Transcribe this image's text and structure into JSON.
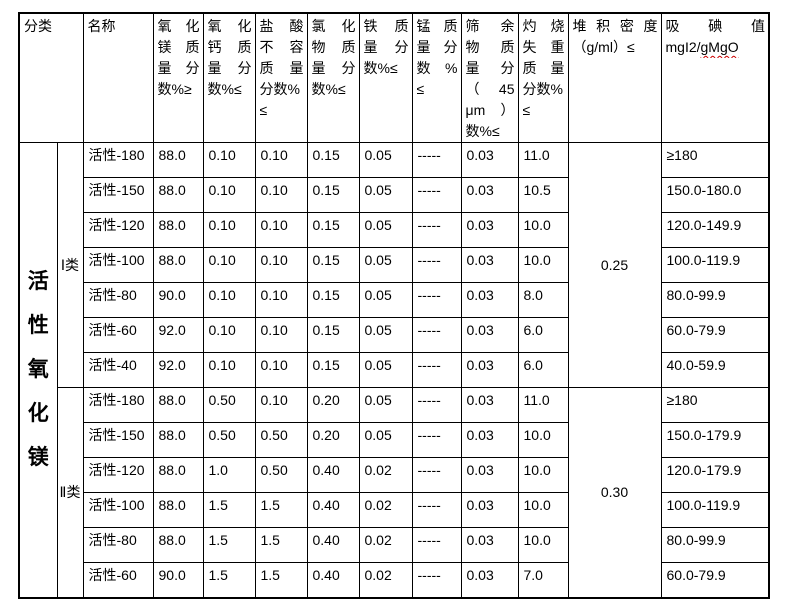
{
  "colors": {
    "background": "#ffffff",
    "text": "#000000",
    "table_border": "#000000",
    "spellcheck_underline": "#cc0000"
  },
  "table": {
    "columns": [
      {
        "id": "classification",
        "label": "分类"
      },
      {
        "id": "name",
        "label": "名称"
      },
      {
        "id": "mgo-mass-fraction",
        "label": "氧化镁质量分数%≥",
        "lines": [
          {
            "t": "氧化",
            "j": true
          },
          {
            "t": "镁质",
            "j": true
          },
          {
            "t": "量分",
            "j": true
          },
          {
            "t": "数%≥",
            "j": false
          }
        ]
      },
      {
        "id": "cao-mass-fraction",
        "label": "氧化钙质量分数%≤",
        "lines": [
          {
            "t": "氧化",
            "j": true
          },
          {
            "t": "钙质",
            "j": true
          },
          {
            "t": "量分",
            "j": true
          },
          {
            "t": "数%≤",
            "j": false
          }
        ]
      },
      {
        "id": "hcl-insoluble-mass-fraction",
        "label": "盐酸不容质量分数%≤",
        "lines": [
          {
            "t": "盐酸",
            "j": true
          },
          {
            "t": "不容",
            "j": true
          },
          {
            "t": "质量",
            "j": true
          },
          {
            "t": "分数%",
            "j": false
          },
          {
            "t": "≤",
            "j": false
          }
        ]
      },
      {
        "id": "chloride-mass-fraction",
        "label": "氯化物质量分数%≤",
        "lines": [
          {
            "t": "氯化",
            "j": true
          },
          {
            "t": "物质",
            "j": true
          },
          {
            "t": "量分",
            "j": true
          },
          {
            "t": "数%≤",
            "j": false
          }
        ]
      },
      {
        "id": "iron-mass-fraction",
        "label": "铁质量分数%≤",
        "lines": [
          {
            "t": "铁质",
            "j": true
          },
          {
            "t": "量分",
            "j": true
          },
          {
            "t": "数%≤",
            "j": false
          }
        ]
      },
      {
        "id": "manganese-mass-fraction",
        "label": "锰质量分数 %≤",
        "lines": [
          {
            "t": "锰质",
            "j": true
          },
          {
            "t": "量分",
            "j": true
          },
          {
            "t": "数 %",
            "j": true
          },
          {
            "t": "≤",
            "j": false
          }
        ]
      },
      {
        "id": "sieve-residue-mass-fraction",
        "label": "筛余物质量分（45μm）数%≤",
        "lines": [
          {
            "t": "筛余",
            "j": true
          },
          {
            "t": "物质",
            "j": true
          },
          {
            "t": "量分",
            "j": true
          },
          {
            "t": "（45",
            "j": true
          },
          {
            "t": "μm）",
            "j": true
          },
          {
            "t": "数%≤",
            "j": false
          }
        ]
      },
      {
        "id": "loss-on-ignition",
        "label": "灼烧失重质量分数%≤",
        "lines": [
          {
            "t": "灼烧",
            "j": true
          },
          {
            "t": "失重",
            "j": true
          },
          {
            "t": "质量",
            "j": true
          },
          {
            "t": "分数%",
            "j": false
          },
          {
            "t": "≤",
            "j": false
          }
        ]
      },
      {
        "id": "bulk-density",
        "label": "堆积密度（g/ml）≤",
        "lines": [
          {
            "t": "堆积密度",
            "j": true
          },
          {
            "t": "（g/ml）≤",
            "j": false
          }
        ]
      },
      {
        "id": "iodine-absorption-value",
        "label": "吸碘值 mgI2/gMgO",
        "lines": [
          {
            "t": "吸碘值",
            "j": true
          }
        ],
        "unit_plain": "mgI2/",
        "unit_flagged": "gMgO"
      }
    ],
    "body": {
      "category_label": "活性氧化镁",
      "groups": [
        {
          "label": "Ⅰ类",
          "bulk_density": "0.25",
          "rows": [
            {
              "name": "活性-180",
              "mgo": "88.0",
              "cao": "0.10",
              "hcl": "0.10",
              "chloride": "0.15",
              "iron": "0.05",
              "manganese": "-----",
              "sieve": "0.03",
              "loi": "11.0",
              "iodine": "≥180"
            },
            {
              "name": "活性-150",
              "mgo": "88.0",
              "cao": "0.10",
              "hcl": "0.10",
              "chloride": "0.15",
              "iron": "0.05",
              "manganese": "-----",
              "sieve": "0.03",
              "loi": "10.5",
              "iodine": "150.0-180.0"
            },
            {
              "name": "活性-120",
              "mgo": "88.0",
              "cao": "0.10",
              "hcl": "0.10",
              "chloride": "0.15",
              "iron": "0.05",
              "manganese": "-----",
              "sieve": "0.03",
              "loi": "10.0",
              "iodine": "120.0-149.9"
            },
            {
              "name": "活性-100",
              "mgo": "88.0",
              "cao": "0.10",
              "hcl": "0.10",
              "chloride": "0.15",
              "iron": "0.05",
              "manganese": "-----",
              "sieve": "0.03",
              "loi": "10.0",
              "iodine": "100.0-119.9"
            },
            {
              "name": "活性-80",
              "mgo": "90.0",
              "cao": "0.10",
              "hcl": "0.10",
              "chloride": "0.15",
              "iron": "0.05",
              "manganese": "-----",
              "sieve": "0.03",
              "loi": "8.0",
              "iodine": "80.0-99.9"
            },
            {
              "name": "活性-60",
              "mgo": "92.0",
              "cao": "0.10",
              "hcl": "0.10",
              "chloride": "0.15",
              "iron": "0.05",
              "manganese": "-----",
              "sieve": "0.03",
              "loi": "6.0",
              "iodine": "60.0-79.9"
            },
            {
              "name": "活性-40",
              "mgo": "92.0",
              "cao": "0.10",
              "hcl": "0.10",
              "chloride": "0.15",
              "iron": "0.05",
              "manganese": "-----",
              "sieve": "0.03",
              "loi": "6.0",
              "iodine": "40.0-59.9"
            }
          ]
        },
        {
          "label": "Ⅱ类",
          "bulk_density": "0.30",
          "rows": [
            {
              "name": "活性-180",
              "mgo": "88.0",
              "cao": "0.50",
              "hcl": "0.10",
              "chloride": "0.20",
              "iron": "0.05",
              "manganese": "-----",
              "sieve": "0.03",
              "loi": "11.0",
              "iodine": "≥180"
            },
            {
              "name": "活性-150",
              "mgo": "88.0",
              "cao": "0.50",
              "hcl": "0.50",
              "chloride": "0.20",
              "iron": "0.05",
              "manganese": "-----",
              "sieve": "0.03",
              "loi": "10.0",
              "iodine": "150.0-179.9"
            },
            {
              "name": "活性-120",
              "mgo": "88.0",
              "cao": "1.0",
              "hcl": "0.50",
              "chloride": "0.40",
              "iron": "0.02",
              "manganese": "-----",
              "sieve": "0.03",
              "loi": "10.0",
              "iodine": "120.0-179.9"
            },
            {
              "name": "活性-100",
              "mgo": "88.0",
              "cao": "1.5",
              "hcl": "1.5",
              "chloride": "0.40",
              "iron": "0.02",
              "manganese": "-----",
              "sieve": "0.03",
              "loi": "10.0",
              "iodine": "100.0-119.9"
            },
            {
              "name": "活性-80",
              "mgo": "88.0",
              "cao": "1.5",
              "hcl": "1.5",
              "chloride": "0.40",
              "iron": "0.02",
              "manganese": "-----",
              "sieve": "0.03",
              "loi": "10.0",
              "iodine": "80.0-99.9"
            },
            {
              "name": "活性-60",
              "mgo": "90.0",
              "cao": "1.5",
              "hcl": "1.5",
              "chloride": "0.40",
              "iron": "0.02",
              "manganese": "-----",
              "sieve": "0.03",
              "loi": "7.0",
              "iodine": "60.0-79.9"
            }
          ]
        }
      ]
    }
  }
}
